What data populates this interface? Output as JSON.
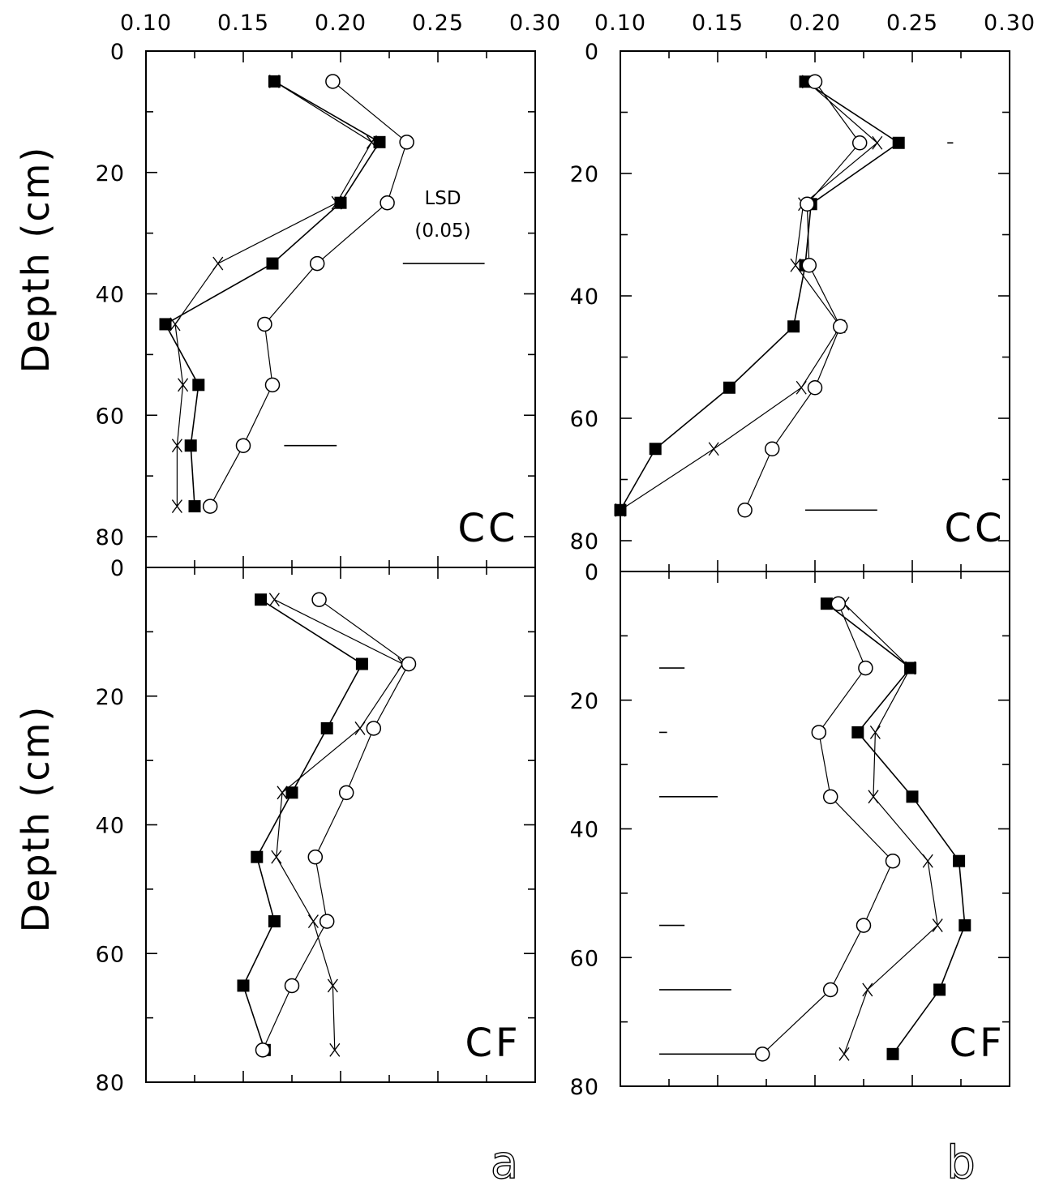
{
  "figure": {
    "panel_letters": [
      "a",
      "b"
    ],
    "lsd_label": "LSD",
    "lsd_level": "(0.05)"
  },
  "colors": {
    "ink": "#000000",
    "background": "#ffffff"
  },
  "chart_data": [
    {
      "id": "a-CC",
      "type": "line",
      "tag": "CC",
      "xlabel": "",
      "ylabel": "Depth (cm)",
      "xlim": [
        0.1,
        0.3
      ],
      "ylim": [
        80,
        0
      ],
      "xticks": [
        "0.10",
        "0.15",
        "0.20",
        "0.25",
        "0.30"
      ],
      "yticks": [
        "0",
        "20",
        "40",
        "60",
        "80"
      ],
      "y": [
        5,
        15,
        25,
        35,
        45,
        55,
        65,
        75
      ],
      "series": [
        {
          "marker": "filled-square",
          "values": [
            0.166,
            0.22,
            0.2,
            0.165,
            0.11,
            0.127,
            0.123,
            0.125
          ]
        },
        {
          "marker": "x",
          "values": [
            0.166,
            0.216,
            0.198,
            0.137,
            0.115,
            0.119,
            0.116,
            0.116
          ]
        },
        {
          "marker": "open-circle",
          "values": [
            0.196,
            0.234,
            0.224,
            0.188,
            0.161,
            0.165,
            0.15,
            0.133
          ]
        }
      ],
      "lsd_bars": [
        {
          "y": 35,
          "x_start": 0.232,
          "x_end": 0.274
        },
        {
          "y": 65,
          "x_start": 0.171,
          "x_end": 0.198
        }
      ]
    },
    {
      "id": "b-CC",
      "type": "line",
      "tag": "CC",
      "xlabel": "",
      "ylabel": "",
      "xlim": [
        0.1,
        0.3
      ],
      "ylim": [
        80,
        0
      ],
      "xticks": [
        "0.10",
        "0.15",
        "0.20",
        "0.25",
        "0.30"
      ],
      "yticks": [
        "0",
        "20",
        "40",
        "60",
        "80"
      ],
      "y": [
        5,
        15,
        25,
        35,
        45,
        55,
        65,
        75
      ],
      "series": [
        {
          "marker": "filled-square",
          "values": [
            0.195,
            0.243,
            0.198,
            0.195,
            0.189,
            0.156,
            0.118,
            0.1
          ]
        },
        {
          "marker": "x",
          "values": [
            0.196,
            0.232,
            0.194,
            0.19,
            0.213,
            0.193,
            0.148,
            0.1
          ]
        },
        {
          "marker": "open-circle",
          "values": [
            0.2,
            0.223,
            0.196,
            0.197,
            0.213,
            0.2,
            0.178,
            0.164
          ]
        }
      ],
      "lsd_bars": [
        {
          "y": 15,
          "x_start": 0.268,
          "x_end": 0.271
        },
        {
          "y": 75,
          "x_start": 0.195,
          "x_end": 0.232
        }
      ]
    },
    {
      "id": "a-CF",
      "type": "line",
      "tag": "CF",
      "xlabel": "",
      "ylabel": "Depth (cm)",
      "xlim": [
        0.1,
        0.3
      ],
      "ylim": [
        80,
        0
      ],
      "xticks": [],
      "yticks": [
        "0",
        "20",
        "40",
        "60",
        "80"
      ],
      "y": [
        5,
        15,
        25,
        35,
        45,
        55,
        65,
        75
      ],
      "series": [
        {
          "marker": "filled-square",
          "values": [
            0.159,
            0.211,
            0.193,
            0.175,
            0.157,
            0.166,
            0.15,
            0.161
          ]
        },
        {
          "marker": "x",
          "values": [
            0.166,
            0.232,
            0.21,
            0.17,
            0.167,
            0.186,
            0.196,
            0.197
          ]
        },
        {
          "marker": "open-circle",
          "values": [
            0.189,
            0.235,
            0.217,
            0.203,
            0.187,
            0.193,
            0.175,
            0.16
          ]
        }
      ],
      "lsd_bars": []
    },
    {
      "id": "b-CF",
      "type": "line",
      "tag": "CF",
      "xlabel": "",
      "ylabel": "",
      "xlim": [
        0.1,
        0.3
      ],
      "ylim": [
        80,
        0
      ],
      "xticks": [],
      "yticks": [
        "0",
        "20",
        "40",
        "60",
        "80"
      ],
      "y": [
        5,
        15,
        25,
        35,
        45,
        55,
        65,
        75
      ],
      "series": [
        {
          "marker": "filled-square",
          "values": [
            0.206,
            0.249,
            0.222,
            0.25,
            0.274,
            0.277,
            0.264,
            0.24
          ]
        },
        {
          "marker": "x",
          "values": [
            0.215,
            0.249,
            0.231,
            0.23,
            0.258,
            0.263,
            0.227,
            0.215
          ]
        },
        {
          "marker": "open-circle",
          "values": [
            0.212,
            0.226,
            0.202,
            0.208,
            0.24,
            0.225,
            0.208,
            0.173
          ]
        }
      ],
      "lsd_bars": [
        {
          "y": 15,
          "x_start": 0.12,
          "x_end": 0.133
        },
        {
          "y": 25,
          "x_start": 0.12,
          "x_end": 0.124
        },
        {
          "y": 35,
          "x_start": 0.12,
          "x_end": 0.15
        },
        {
          "y": 55,
          "x_start": 0.12,
          "x_end": 0.133
        },
        {
          "y": 65,
          "x_start": 0.12,
          "x_end": 0.157
        },
        {
          "y": 75,
          "x_start": 0.12,
          "x_end": 0.173
        }
      ]
    }
  ]
}
